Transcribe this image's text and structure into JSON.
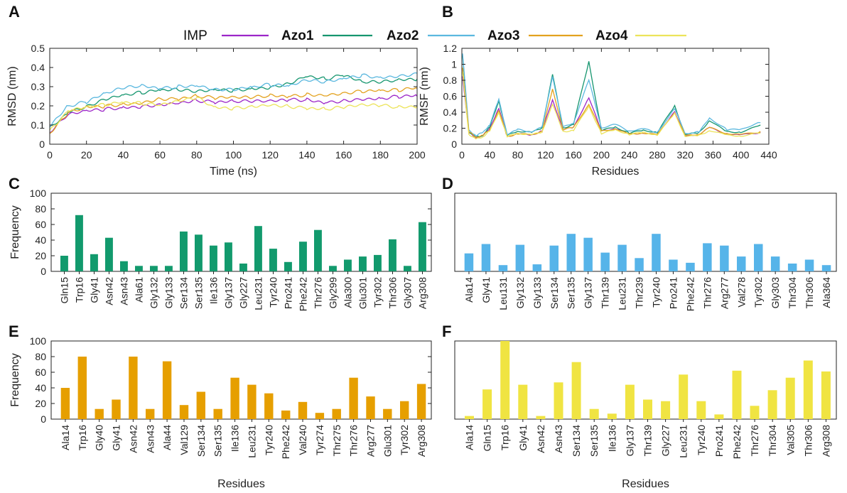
{
  "colors": {
    "IMP": "#9c26c8",
    "Azo1": "#16966f",
    "Azo2": "#5bb8df",
    "Azo3": "#e3a21f",
    "Azo4": "#ece45a",
    "barC": "#129a6d",
    "barD": "#56b4e9",
    "barE": "#e69f00",
    "barF": "#f0e442"
  },
  "legend": {
    "entries": [
      {
        "label": "IMP",
        "bold": false,
        "color_key": "IMP"
      },
      {
        "label": "Azo1",
        "bold": true,
        "color_key": "Azo1"
      },
      {
        "label": "Azo2",
        "bold": true,
        "color_key": "Azo2"
      },
      {
        "label": "Azo3",
        "bold": true,
        "color_key": "Azo3"
      },
      {
        "label": "Azo4",
        "bold": true,
        "color_key": "Azo4"
      }
    ]
  },
  "chart_data": [
    {
      "id": "A",
      "panel": "A",
      "type": "line",
      "xlabel": "Time (ns)",
      "ylabel": "RMSD (nm)",
      "xlim": [
        0,
        200
      ],
      "ylim": [
        0,
        0.5
      ],
      "xticks": [
        0,
        20,
        40,
        60,
        80,
        100,
        120,
        140,
        160,
        180,
        200
      ],
      "yticks": [
        0,
        0.1,
        0.2,
        0.3,
        0.4,
        0.5
      ],
      "series": [
        {
          "name": "IMP",
          "x": [
            0,
            10,
            20,
            30,
            40,
            50,
            60,
            70,
            80,
            90,
            100,
            110,
            120,
            130,
            140,
            150,
            160,
            170,
            180,
            190,
            200
          ],
          "values": [
            0.06,
            0.15,
            0.17,
            0.18,
            0.19,
            0.2,
            0.21,
            0.22,
            0.23,
            0.22,
            0.22,
            0.22,
            0.22,
            0.23,
            0.23,
            0.22,
            0.23,
            0.24,
            0.24,
            0.25,
            0.25
          ]
        },
        {
          "name": "Azo1",
          "x": [
            0,
            10,
            20,
            30,
            40,
            50,
            60,
            70,
            80,
            90,
            100,
            110,
            120,
            130,
            140,
            150,
            160,
            170,
            180,
            190,
            200
          ],
          "values": [
            0.08,
            0.17,
            0.2,
            0.24,
            0.26,
            0.27,
            0.28,
            0.28,
            0.27,
            0.28,
            0.28,
            0.29,
            0.3,
            0.32,
            0.36,
            0.34,
            0.36,
            0.32,
            0.32,
            0.33,
            0.34
          ]
        },
        {
          "name": "Azo2",
          "x": [
            0,
            10,
            20,
            30,
            40,
            50,
            60,
            70,
            80,
            90,
            100,
            110,
            120,
            130,
            140,
            150,
            160,
            170,
            180,
            190,
            200
          ],
          "values": [
            0.1,
            0.2,
            0.22,
            0.26,
            0.29,
            0.3,
            0.29,
            0.3,
            0.31,
            0.29,
            0.29,
            0.3,
            0.31,
            0.3,
            0.33,
            0.32,
            0.34,
            0.36,
            0.35,
            0.36,
            0.37
          ]
        },
        {
          "name": "Azo3",
          "x": [
            0,
            10,
            20,
            30,
            40,
            50,
            60,
            70,
            80,
            90,
            100,
            110,
            120,
            130,
            140,
            150,
            160,
            170,
            180,
            190,
            200
          ],
          "values": [
            0.05,
            0.16,
            0.19,
            0.2,
            0.21,
            0.22,
            0.24,
            0.24,
            0.25,
            0.24,
            0.24,
            0.24,
            0.25,
            0.25,
            0.26,
            0.26,
            0.27,
            0.28,
            0.28,
            0.28,
            0.29
          ]
        },
        {
          "name": "Azo4",
          "x": [
            0,
            10,
            20,
            30,
            40,
            50,
            60,
            70,
            80,
            90,
            100,
            110,
            120,
            130,
            140,
            150,
            160,
            170,
            180,
            190,
            200
          ],
          "values": [
            0.07,
            0.18,
            0.2,
            0.21,
            0.22,
            0.21,
            0.2,
            0.22,
            0.24,
            0.19,
            0.19,
            0.2,
            0.21,
            0.2,
            0.19,
            0.18,
            0.19,
            0.2,
            0.2,
            0.19,
            0.2
          ]
        }
      ]
    },
    {
      "id": "B",
      "panel": "B",
      "type": "line",
      "xlabel": "Residues",
      "ylabel": "RMSF (nm)",
      "xlim": [
        0,
        440
      ],
      "ylim": [
        0,
        1.2
      ],
      "xticks": [
        0,
        40,
        80,
        120,
        160,
        200,
        240,
        280,
        320,
        360,
        400,
        440
      ],
      "yticks": [
        0,
        0.2,
        0.4,
        0.6,
        0.8,
        1,
        1.2
      ],
      "series": [
        {
          "name": "IMP",
          "x": [
            1,
            10,
            20,
            30,
            40,
            53,
            65,
            80,
            100,
            115,
            130,
            145,
            160,
            182,
            200,
            220,
            240,
            260,
            280,
            305,
            320,
            340,
            355,
            380,
            400,
            428
          ],
          "values": [
            0.85,
            0.14,
            0.07,
            0.1,
            0.2,
            0.45,
            0.1,
            0.14,
            0.12,
            0.17,
            0.55,
            0.18,
            0.2,
            0.58,
            0.16,
            0.2,
            0.13,
            0.15,
            0.12,
            0.42,
            0.1,
            0.12,
            0.2,
            0.12,
            0.11,
            0.15
          ]
        },
        {
          "name": "Azo1",
          "x": [
            1,
            10,
            20,
            30,
            40,
            53,
            65,
            80,
            100,
            115,
            130,
            145,
            160,
            182,
            200,
            220,
            240,
            260,
            280,
            305,
            320,
            340,
            355,
            380,
            400,
            428
          ],
          "values": [
            1.1,
            0.16,
            0.09,
            0.12,
            0.22,
            0.55,
            0.11,
            0.16,
            0.14,
            0.2,
            0.87,
            0.2,
            0.25,
            1.04,
            0.18,
            0.22,
            0.14,
            0.17,
            0.14,
            0.47,
            0.12,
            0.14,
            0.3,
            0.16,
            0.16,
            0.24
          ]
        },
        {
          "name": "Azo2",
          "x": [
            1,
            10,
            20,
            30,
            40,
            53,
            65,
            80,
            100,
            115,
            130,
            145,
            160,
            182,
            200,
            220,
            240,
            260,
            280,
            305,
            320,
            340,
            355,
            380,
            400,
            428
          ],
          "values": [
            1.15,
            0.18,
            0.11,
            0.14,
            0.24,
            0.55,
            0.12,
            0.18,
            0.16,
            0.22,
            0.86,
            0.22,
            0.27,
            0.8,
            0.2,
            0.24,
            0.16,
            0.19,
            0.15,
            0.45,
            0.14,
            0.16,
            0.33,
            0.18,
            0.18,
            0.27
          ]
        },
        {
          "name": "Azo3",
          "x": [
            1,
            10,
            20,
            30,
            40,
            53,
            65,
            80,
            100,
            115,
            130,
            145,
            160,
            182,
            200,
            220,
            240,
            260,
            280,
            305,
            320,
            340,
            355,
            380,
            400,
            428
          ],
          "values": [
            0.95,
            0.15,
            0.08,
            0.11,
            0.18,
            0.43,
            0.1,
            0.14,
            0.12,
            0.16,
            0.68,
            0.18,
            0.2,
            0.5,
            0.16,
            0.2,
            0.13,
            0.15,
            0.12,
            0.4,
            0.1,
            0.12,
            0.2,
            0.13,
            0.12,
            0.16
          ]
        },
        {
          "name": "Azo4",
          "x": [
            1,
            10,
            20,
            30,
            40,
            53,
            65,
            80,
            100,
            115,
            130,
            145,
            160,
            182,
            200,
            220,
            240,
            260,
            280,
            305,
            320,
            340,
            355,
            380,
            400,
            428
          ],
          "values": [
            0.9,
            0.13,
            0.07,
            0.1,
            0.17,
            0.4,
            0.09,
            0.13,
            0.11,
            0.15,
            0.5,
            0.16,
            0.18,
            0.48,
            0.14,
            0.18,
            0.12,
            0.14,
            0.11,
            0.38,
            0.1,
            0.11,
            0.18,
            0.12,
            0.11,
            0.14
          ]
        }
      ]
    },
    {
      "id": "C",
      "panel": "C",
      "type": "bar",
      "color_key": "barC",
      "xlabel": "",
      "ylabel": "Frequency",
      "ylim": [
        0,
        100
      ],
      "yticks": [
        0,
        20,
        40,
        60,
        80,
        100
      ],
      "categories": [
        "Gln15",
        "Trp16",
        "Gly41",
        "Asn42",
        "Asn43",
        "Ala61",
        "Gly132",
        "Gly133",
        "Ser134",
        "Ser135",
        "Ile136",
        "Gly137",
        "Gly227",
        "Leu231",
        "Tyr240",
        "Pro241",
        "Phe242",
        "Thr276",
        "Gly299",
        "Ala300",
        "Glu301",
        "Tyr302",
        "Thr306",
        "Gly307",
        "Arg308"
      ],
      "values": [
        20,
        72,
        22,
        43,
        13,
        7,
        7,
        7,
        51,
        47,
        33,
        37,
        10,
        58,
        29,
        12,
        38,
        53,
        7,
        15,
        19,
        21,
        41,
        7,
        63
      ]
    },
    {
      "id": "D",
      "panel": "D",
      "type": "bar",
      "color_key": "barD",
      "xlabel": "",
      "ylabel": "",
      "ylim": [
        0,
        100
      ],
      "yticks": [],
      "categories": [
        "Ala14",
        "Gly41",
        "Leu131",
        "Gly132",
        "Gly133",
        "Ser134",
        "Ser135",
        "Gly137",
        "Thr139",
        "Leu231",
        "Thr239",
        "Tyr240",
        "Pro241",
        "Phe242",
        "Thr276",
        "Arg277",
        "Val278",
        "Tyr302",
        "Gly303",
        "Thr304",
        "Thr306",
        "Ala364"
      ],
      "values": [
        23,
        35,
        8,
        34,
        9,
        33,
        48,
        43,
        24,
        34,
        17,
        48,
        15,
        11,
        36,
        33,
        19,
        35,
        19,
        10,
        15,
        8
      ]
    },
    {
      "id": "E",
      "panel": "E",
      "type": "bar",
      "color_key": "barE",
      "xlabel": "Residues",
      "ylabel": "Frequency",
      "ylim": [
        0,
        100
      ],
      "yticks": [
        0,
        20,
        40,
        60,
        80,
        100
      ],
      "categories": [
        "Ala14",
        "Trp16",
        "Gly40",
        "Gly41",
        "Asn42",
        "Asn43",
        "Ala44",
        "Val129",
        "Ser134",
        "Ser135",
        "Ile136",
        "Leu231",
        "Tyr240",
        "Phe242",
        "Val240",
        "Tyr274",
        "Thr275",
        "Thr276",
        "Arg277",
        "Glu301",
        "Tyr302",
        "Arg308"
      ],
      "values": [
        40,
        80,
        13,
        25,
        80,
        13,
        74,
        18,
        35,
        13,
        53,
        44,
        33,
        11,
        22,
        8,
        13,
        53,
        29,
        13,
        23,
        45
      ]
    },
    {
      "id": "F",
      "panel": "F",
      "type": "bar",
      "color_key": "barF",
      "xlabel": "Residues",
      "ylabel": "",
      "ylim": [
        0,
        100
      ],
      "yticks": [],
      "categories": [
        "Ala14",
        "Gln15",
        "Trp16",
        "Gly41",
        "Asn42",
        "Asn43",
        "Ser134",
        "Ser135",
        "Ile136",
        "Gly137",
        "Thr139",
        "Gly227",
        "Leu231",
        "Tyr240",
        "Pro241",
        "Phe242",
        "Thr276",
        "Thr304",
        "Val305",
        "Thr306",
        "Arg308"
      ],
      "values": [
        4,
        38,
        100,
        44,
        4,
        47,
        73,
        13,
        7,
        44,
        25,
        23,
        57,
        23,
        6,
        62,
        17,
        37,
        53,
        75,
        61
      ]
    }
  ]
}
